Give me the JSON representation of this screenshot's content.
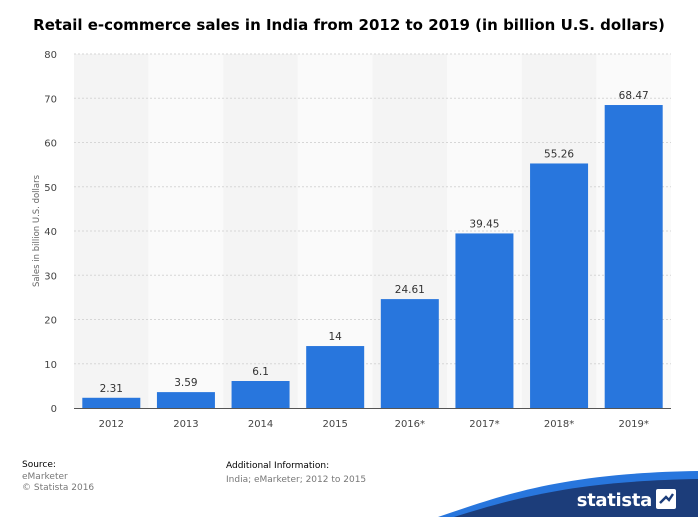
{
  "title": "Retail e-commerce sales in India from 2012 to 2019 (in billion U.S. dollars)",
  "chart_data": {
    "type": "bar",
    "title": "Retail e-commerce sales in India from 2012 to 2019 (in billion U.S. dollars)",
    "categories": [
      "2012",
      "2013",
      "2014",
      "2015",
      "2016*",
      "2017*",
      "2018*",
      "2019*"
    ],
    "values": [
      2.31,
      3.59,
      6.1,
      14,
      24.61,
      39.45,
      55.26,
      68.47
    ],
    "value_labels": [
      "2.31",
      "3.59",
      "6.1",
      "14",
      "24.61",
      "39.45",
      "55.26",
      "68.47"
    ],
    "ylabel": "Sales in billion U.S. dollars",
    "xlabel": "",
    "ylim": [
      0,
      80
    ],
    "yticks": [
      0,
      10,
      20,
      30,
      40,
      50,
      60,
      70,
      80
    ],
    "grid": true,
    "bar_color": "#2876dd"
  },
  "footer": {
    "source_head": "Source:",
    "source_lines": [
      "eMarketer",
      "© Statista 2016"
    ],
    "info_head": "Additional Information:",
    "info_text": "India; eMarketer; 2012 to 2015"
  },
  "brand": {
    "name": "statista",
    "color": "#1c3d7a",
    "accent": "#2876dd"
  }
}
